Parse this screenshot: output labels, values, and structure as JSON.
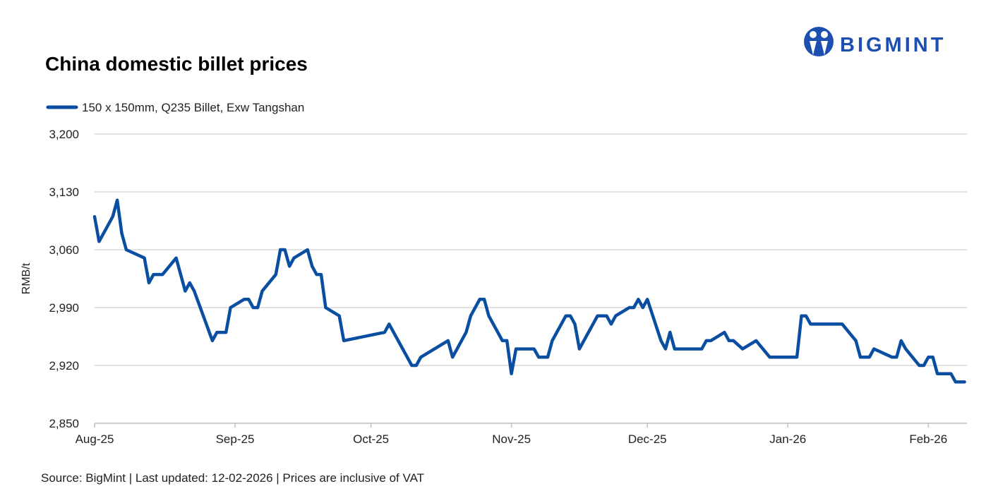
{
  "brand": {
    "name": "BIGMINT",
    "color": "#1d4fb0"
  },
  "chart_data": {
    "type": "line",
    "title": "China domestic billet prices",
    "ylabel": "RMB/t",
    "xlabel": "",
    "ylim": [
      2850,
      3200
    ],
    "yticks": [
      2850,
      2920,
      2990,
      3060,
      3130,
      3200
    ],
    "ytick_labels": [
      "2,850",
      "2,920",
      "2,990",
      "3,060",
      "3,130",
      "3,200"
    ],
    "xticks": [
      "2025-08-01",
      "2025-09-01",
      "2025-10-01",
      "2025-11-01",
      "2025-12-01",
      "2026-01-01",
      "2026-02-01"
    ],
    "xtick_labels": [
      "Aug-25",
      "Sep-25",
      "Oct-25",
      "Nov-25",
      "Dec-25",
      "Jan-26",
      "Feb-26"
    ],
    "grid": true,
    "legend": "top-left",
    "series": [
      {
        "name": "150 x 150mm, Q235 Billet, Exw Tangshan",
        "color": "#0a4ea2",
        "points": [
          [
            "2025-08-01",
            3100
          ],
          [
            "2025-08-02",
            3070
          ],
          [
            "2025-08-05",
            3100
          ],
          [
            "2025-08-06",
            3120
          ],
          [
            "2025-08-07",
            3080
          ],
          [
            "2025-08-08",
            3060
          ],
          [
            "2025-08-12",
            3050
          ],
          [
            "2025-08-13",
            3020
          ],
          [
            "2025-08-14",
            3030
          ],
          [
            "2025-08-16",
            3030
          ],
          [
            "2025-08-19",
            3050
          ],
          [
            "2025-08-21",
            3010
          ],
          [
            "2025-08-22",
            3020
          ],
          [
            "2025-08-23",
            3010
          ],
          [
            "2025-08-27",
            2950
          ],
          [
            "2025-08-28",
            2960
          ],
          [
            "2025-08-30",
            2960
          ],
          [
            "2025-08-31",
            2990
          ],
          [
            "2025-09-03",
            3000
          ],
          [
            "2025-09-04",
            3000
          ],
          [
            "2025-09-05",
            2990
          ],
          [
            "2025-09-06",
            2990
          ],
          [
            "2025-09-07",
            3010
          ],
          [
            "2025-09-10",
            3030
          ],
          [
            "2025-09-11",
            3060
          ],
          [
            "2025-09-12",
            3060
          ],
          [
            "2025-09-13",
            3040
          ],
          [
            "2025-09-14",
            3050
          ],
          [
            "2025-09-17",
            3060
          ],
          [
            "2025-09-18",
            3040
          ],
          [
            "2025-09-19",
            3030
          ],
          [
            "2025-09-20",
            3030
          ],
          [
            "2025-09-21",
            2990
          ],
          [
            "2025-09-24",
            2980
          ],
          [
            "2025-09-25",
            2950
          ],
          [
            "2025-10-04",
            2960
          ],
          [
            "2025-10-05",
            2970
          ],
          [
            "2025-10-10",
            2920
          ],
          [
            "2025-10-11",
            2920
          ],
          [
            "2025-10-12",
            2930
          ],
          [
            "2025-10-18",
            2950
          ],
          [
            "2025-10-19",
            2930
          ],
          [
            "2025-10-22",
            2960
          ],
          [
            "2025-10-23",
            2980
          ],
          [
            "2025-10-25",
            3000
          ],
          [
            "2025-10-26",
            3000
          ],
          [
            "2025-10-27",
            2980
          ],
          [
            "2025-10-30",
            2950
          ],
          [
            "2025-10-31",
            2950
          ],
          [
            "2025-11-01",
            2910
          ],
          [
            "2025-11-02",
            2940
          ],
          [
            "2025-11-06",
            2940
          ],
          [
            "2025-11-07",
            2930
          ],
          [
            "2025-11-09",
            2930
          ],
          [
            "2025-11-10",
            2950
          ],
          [
            "2025-11-13",
            2980
          ],
          [
            "2025-11-14",
            2980
          ],
          [
            "2025-11-15",
            2970
          ],
          [
            "2025-11-16",
            2940
          ],
          [
            "2025-11-20",
            2980
          ],
          [
            "2025-11-22",
            2980
          ],
          [
            "2025-11-23",
            2970
          ],
          [
            "2025-11-24",
            2980
          ],
          [
            "2025-11-27",
            2990
          ],
          [
            "2025-11-28",
            2990
          ],
          [
            "2025-11-29",
            3000
          ],
          [
            "2025-11-30",
            2990
          ],
          [
            "2025-12-01",
            3000
          ],
          [
            "2025-12-04",
            2950
          ],
          [
            "2025-12-05",
            2940
          ],
          [
            "2025-12-06",
            2960
          ],
          [
            "2025-12-07",
            2940
          ],
          [
            "2025-12-13",
            2940
          ],
          [
            "2025-12-14",
            2950
          ],
          [
            "2025-12-15",
            2950
          ],
          [
            "2025-12-18",
            2960
          ],
          [
            "2025-12-19",
            2950
          ],
          [
            "2025-12-20",
            2950
          ],
          [
            "2025-12-22",
            2940
          ],
          [
            "2025-12-25",
            2950
          ],
          [
            "2025-12-28",
            2930
          ],
          [
            "2026-01-03",
            2930
          ],
          [
            "2026-01-04",
            2980
          ],
          [
            "2026-01-05",
            2980
          ],
          [
            "2026-01-06",
            2970
          ],
          [
            "2026-01-13",
            2970
          ],
          [
            "2026-01-16",
            2950
          ],
          [
            "2026-01-17",
            2930
          ],
          [
            "2026-01-19",
            2930
          ],
          [
            "2026-01-20",
            2940
          ],
          [
            "2026-01-24",
            2930
          ],
          [
            "2026-01-25",
            2930
          ],
          [
            "2026-01-26",
            2950
          ],
          [
            "2026-01-27",
            2940
          ],
          [
            "2026-01-30",
            2920
          ],
          [
            "2026-01-31",
            2920
          ],
          [
            "2026-02-01",
            2930
          ],
          [
            "2026-02-02",
            2930
          ],
          [
            "2026-02-03",
            2910
          ],
          [
            "2026-02-06",
            2910
          ],
          [
            "2026-02-07",
            2900
          ],
          [
            "2026-02-09",
            2900
          ]
        ]
      }
    ],
    "footnote": "Source: BigMint | Last updated: 12-02-2026 | Prices are inclusive of VAT"
  }
}
